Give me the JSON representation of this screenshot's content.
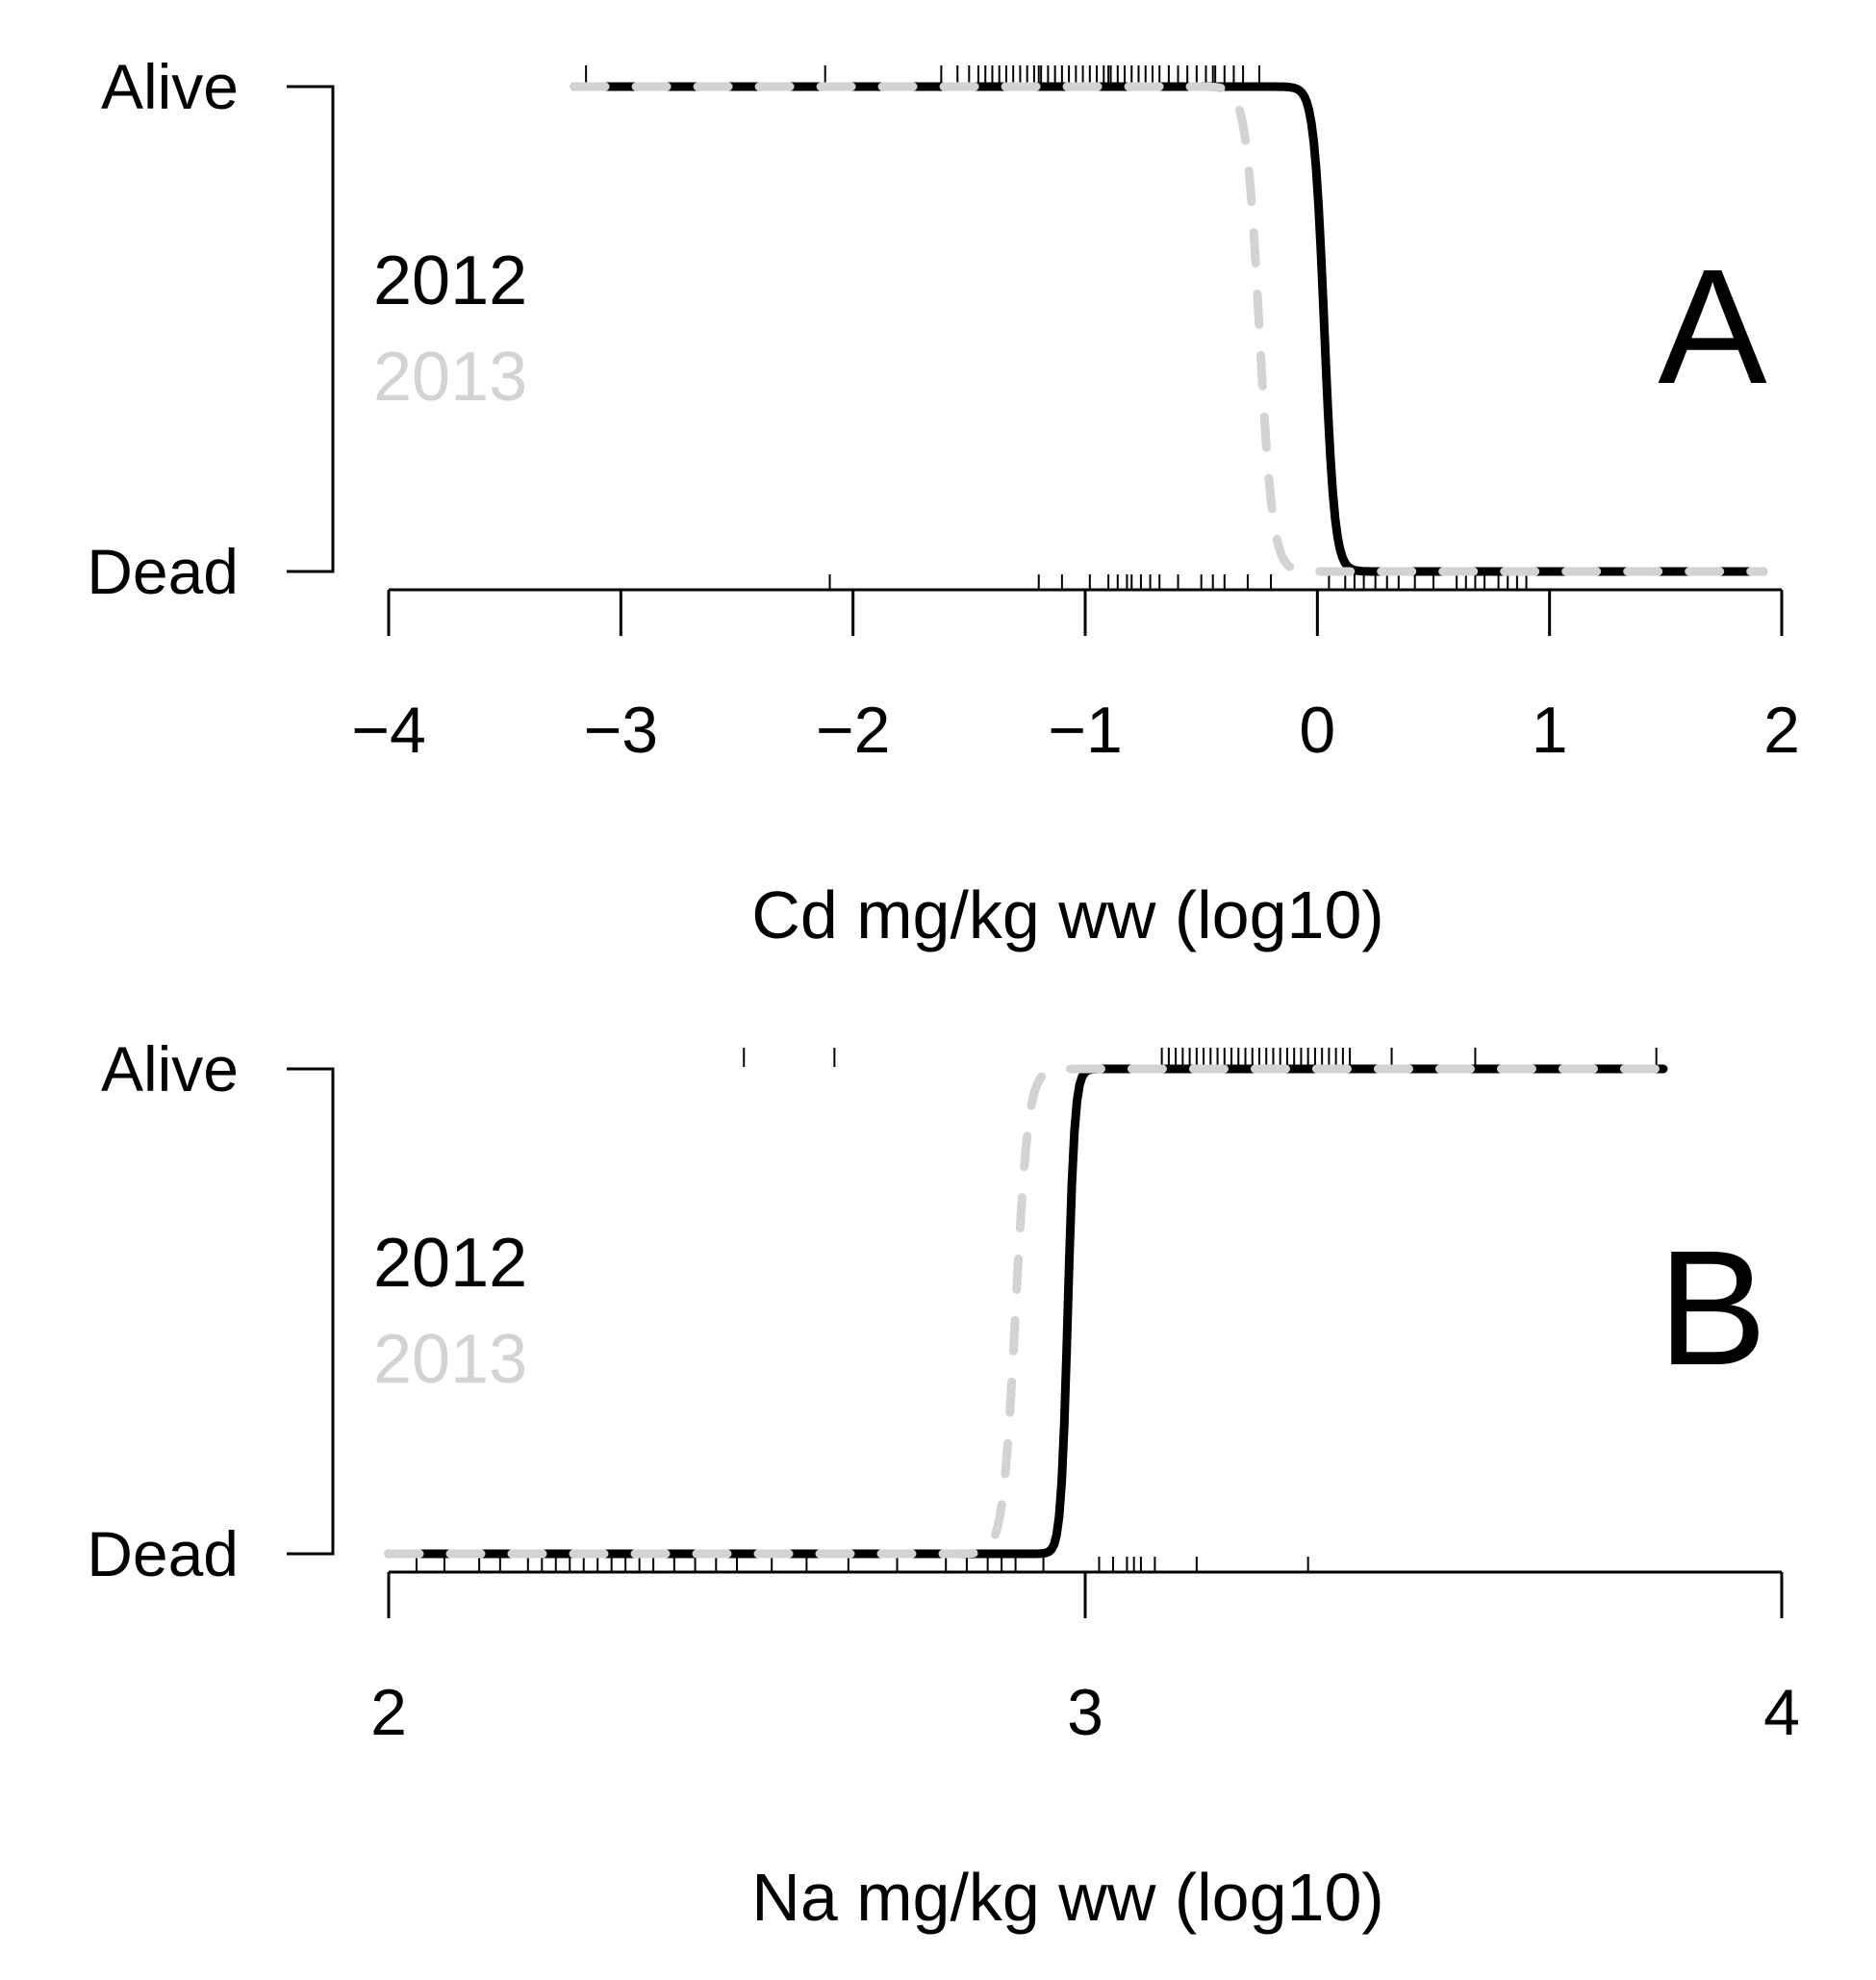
{
  "colors": {
    "y2012": "#000000",
    "y2013": "#d3d3d3"
  },
  "chart_data": [
    {
      "type": "line",
      "panel_label": "A",
      "xlabel": "Cd mg/kg ww (log10)",
      "xlim": [
        -4,
        2
      ],
      "x_ticks": [
        -4,
        -3,
        -2,
        -1,
        0,
        1,
        2
      ],
      "x_tick_labels": [
        "−4",
        "−3",
        "−2",
        "−1",
        "0",
        "1",
        "2"
      ],
      "y_categories": [
        "Dead",
        "Alive"
      ],
      "legend": [
        {
          "name": "2012",
          "color": "#000000",
          "style": "solid"
        },
        {
          "name": "2013",
          "color": "#d3d3d3",
          "style": "dashed"
        }
      ],
      "series": [
        {
          "name": "2012",
          "style": "solid",
          "color": "#000000",
          "x_range": [
            -3.2,
            1.92
          ],
          "threshold": 0.03,
          "steepness": 45,
          "direction": "decreasing"
        },
        {
          "name": "2013",
          "style": "dashed",
          "color": "#d3d3d3",
          "x_range": [
            -3.2,
            1.92
          ],
          "threshold": -0.25,
          "steepness": 35,
          "direction": "decreasing"
        }
      ],
      "rug_alive": [
        -3.15,
        -2.12,
        -1.62,
        -1.55,
        -1.5,
        -1.46,
        -1.43,
        -1.4,
        -1.37,
        -1.34,
        -1.31,
        -1.28,
        -1.25,
        -1.22,
        -1.19,
        -1.16,
        -1.13,
        -1.1,
        -1.07,
        -1.04,
        -1.01,
        -0.98,
        -0.95,
        -0.92,
        -0.89,
        -0.86,
        -0.83,
        -0.8,
        -0.77,
        -0.74,
        -0.71,
        -0.68,
        -0.64,
        -0.6,
        -0.56,
        -0.52,
        -0.48,
        -0.44,
        -0.4,
        -0.36,
        -0.32,
        -0.25,
        -0.45,
        -0.9,
        -1.2
      ],
      "rug_dead": [
        -2.1,
        -1.2,
        -1.1,
        -0.98,
        -0.9,
        -0.86,
        -0.82,
        -0.8,
        -0.76,
        -0.72,
        -0.68,
        -0.6,
        -0.5,
        -0.45,
        -0.4,
        -0.3,
        -0.2,
        0.05,
        0.12,
        0.16,
        0.2,
        0.25,
        0.3,
        0.35,
        0.42,
        0.5,
        0.6,
        0.64,
        0.68,
        0.72,
        0.78,
        0.82,
        0.86,
        0.9
      ]
    },
    {
      "type": "line",
      "panel_label": "B",
      "xlabel": "Na mg/kg ww (log10)",
      "xlim": [
        2,
        4
      ],
      "x_ticks": [
        2,
        3,
        4
      ],
      "x_tick_labels": [
        "2",
        "3",
        "4"
      ],
      "y_categories": [
        "Dead",
        "Alive"
      ],
      "legend": [
        {
          "name": "2012",
          "color": "#000000",
          "style": "solid"
        },
        {
          "name": "2013",
          "color": "#d3d3d3",
          "style": "dashed"
        }
      ],
      "series": [
        {
          "name": "2012",
          "style": "solid",
          "color": "#000000",
          "x_range": [
            2,
            3.83
          ],
          "threshold": 2.975,
          "steepness": 200,
          "direction": "increasing"
        },
        {
          "name": "2013",
          "style": "dashed",
          "color": "#d3d3d3",
          "x_range": [
            2,
            3.83
          ],
          "threshold": 2.9,
          "steepness": 110,
          "direction": "increasing"
        }
      ],
      "rug_alive": [
        2.51,
        2.64,
        3.11,
        3.12,
        3.13,
        3.14,
        3.15,
        3.16,
        3.17,
        3.18,
        3.19,
        3.2,
        3.21,
        3.22,
        3.23,
        3.24,
        3.25,
        3.26,
        3.27,
        3.28,
        3.29,
        3.3,
        3.31,
        3.32,
        3.33,
        3.34,
        3.35,
        3.36,
        3.37,
        3.38,
        3.44,
        3.56,
        3.82
      ],
      "rug_dead": [
        2.04,
        2.08,
        2.13,
        2.16,
        2.2,
        2.22,
        2.24,
        2.26,
        2.28,
        2.3,
        2.32,
        2.34,
        2.36,
        2.38,
        2.41,
        2.44,
        2.47,
        2.5,
        2.55,
        2.6,
        2.66,
        2.73,
        2.8,
        2.83,
        2.86,
        2.88,
        2.9,
        2.94,
        3.02,
        3.04,
        3.06,
        3.07,
        3.08,
        3.1,
        3.16,
        3.32
      ]
    }
  ]
}
